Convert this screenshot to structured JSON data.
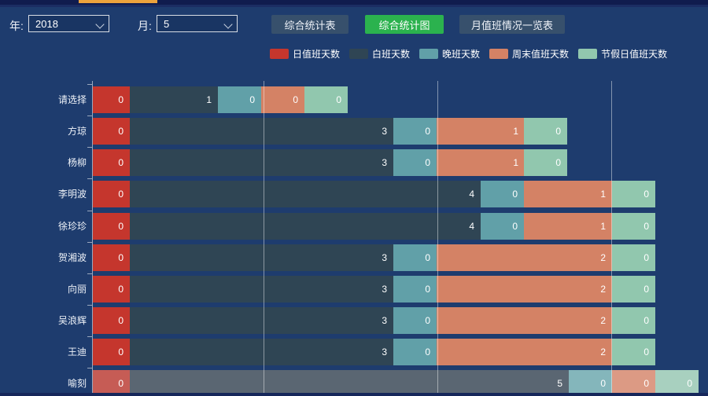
{
  "window": {
    "accent_color": "#eda33c",
    "background_color": "#1e3c6e"
  },
  "toolbar": {
    "year_label": "年:",
    "year_value": "2018",
    "month_label": "月:",
    "month_value": "5",
    "buttons": [
      {
        "label": "综合统计表",
        "variant": "dark"
      },
      {
        "label": "综合统计图",
        "variant": "green",
        "active": true
      },
      {
        "label": "月值班情况一览表",
        "variant": "dark"
      }
    ]
  },
  "chart_data": {
    "type": "bar",
    "orientation": "horizontal",
    "stacked": true,
    "grid": true,
    "legend_position": "top",
    "value_labels_shown": true,
    "categories": [
      "请选择",
      "方琼",
      "杨柳",
      "李明波",
      "徐珍珍",
      "贺湘波",
      "向丽",
      "吴浪辉",
      "王迪",
      "喻刻"
    ],
    "series": [
      {
        "name": "日值班天数",
        "color": "#c5362d",
        "highlight_color": "#c65c55",
        "values": [
          0,
          0,
          0,
          0,
          0,
          0,
          0,
          0,
          0,
          0
        ]
      },
      {
        "name": "白班天数",
        "color": "#2f4554",
        "highlight_color": "#5a6672",
        "values": [
          1,
          3,
          3,
          4,
          4,
          3,
          3,
          3,
          3,
          5
        ]
      },
      {
        "name": "晚班天数",
        "color": "#61a0a8",
        "highlight_color": "#84b6bb",
        "values": [
          0,
          0,
          0,
          0,
          0,
          0,
          0,
          0,
          0,
          0
        ]
      },
      {
        "name": "周末值班天数",
        "color": "#d48265",
        "highlight_color": "#dc9a84",
        "values": [
          0,
          1,
          1,
          1,
          1,
          2,
          2,
          2,
          2,
          0
        ]
      },
      {
        "name": "节假日值班天数",
        "color": "#91c7ae",
        "highlight_color": "#a8d0bf",
        "values": [
          0,
          0,
          0,
          0,
          0,
          0,
          0,
          0,
          0,
          0
        ]
      }
    ],
    "highlighted_row": "喻刻"
  }
}
